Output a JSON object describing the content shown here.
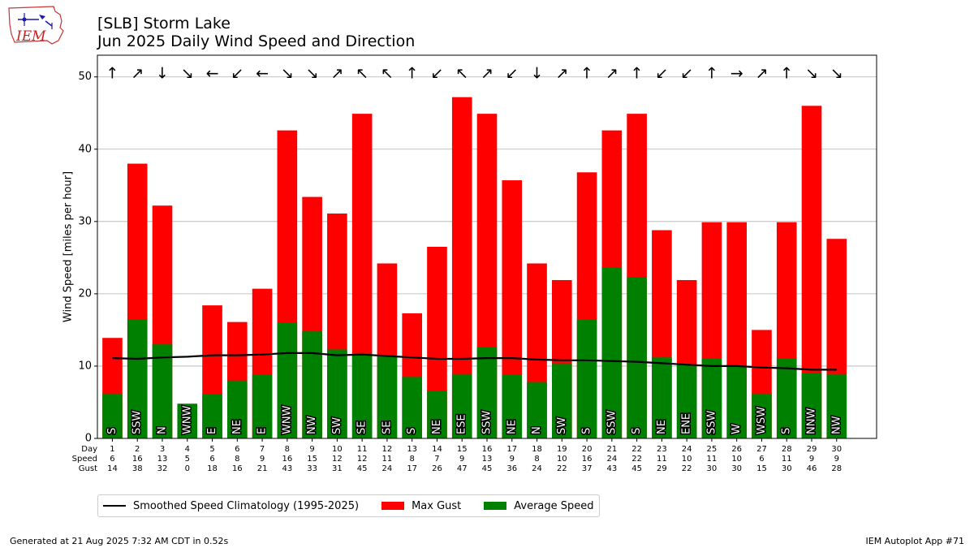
{
  "header": {
    "title_line1": "[SLB] Storm Lake",
    "title_line2": "Jun 2025 Daily Wind Speed and Direction",
    "logo_text": "IEM"
  },
  "footer": {
    "generated": "Generated at 21 Aug 2025 7:32 AM CDT in 0.52s",
    "app": "IEM Autoplot App #71"
  },
  "legend": {
    "clim_label": "Smoothed Speed Climatology (1995-2025)",
    "gust_label": "Max Gust",
    "avg_label": "Average Speed"
  },
  "colors": {
    "gust": "#ff0000",
    "avg": "#008000",
    "clim": "#000000"
  },
  "chart_data": {
    "type": "bar",
    "ylabel": "Wind Speed [miles per hour]",
    "ylim": [
      0,
      53
    ],
    "yticks": [
      0,
      10,
      20,
      30,
      40,
      50
    ],
    "grid": true,
    "legend_position": "bottom",
    "row_labels": [
      "Day",
      "Speed",
      "Gust"
    ],
    "days": [
      1,
      2,
      3,
      4,
      5,
      6,
      7,
      8,
      9,
      10,
      11,
      12,
      13,
      14,
      15,
      16,
      17,
      18,
      19,
      20,
      21,
      22,
      23,
      24,
      25,
      26,
      27,
      28,
      29,
      30
    ],
    "speed_rounded": [
      6,
      16,
      13,
      5,
      6,
      8,
      9,
      16,
      15,
      12,
      12,
      11,
      8,
      7,
      9,
      13,
      9,
      8,
      10,
      16,
      24,
      22,
      11,
      10,
      11,
      10,
      6,
      11,
      9,
      9
    ],
    "gust_rounded": [
      14,
      38,
      32,
      0,
      18,
      16,
      21,
      43,
      33,
      31,
      45,
      24,
      17,
      26,
      47,
      45,
      36,
      24,
      22,
      37,
      43,
      45,
      29,
      22,
      30,
      30,
      15,
      30,
      46,
      28
    ],
    "series": [
      {
        "name": "Max Gust",
        "values": [
          13.9,
          38.0,
          32.2,
          0,
          18.4,
          16.1,
          20.7,
          42.6,
          33.4,
          31.1,
          44.9,
          24.2,
          17.3,
          26.5,
          47.2,
          44.9,
          35.7,
          24.2,
          21.9,
          36.8,
          42.6,
          44.9,
          28.8,
          21.9,
          29.9,
          29.9,
          15.0,
          29.9,
          46.0,
          27.6
        ]
      },
      {
        "name": "Average Speed",
        "values": [
          6.2,
          16.5,
          13.0,
          4.8,
          6.1,
          8.0,
          8.8,
          16.0,
          14.8,
          12.3,
          11.8,
          11.3,
          8.5,
          6.6,
          8.9,
          12.6,
          8.8,
          7.8,
          10.3,
          16.4,
          23.7,
          22.3,
          11.2,
          10.2,
          11.0,
          10.0,
          6.2,
          11.0,
          9.0,
          8.9
        ]
      },
      {
        "name": "Smoothed Speed Climatology (1995-2025)",
        "values": [
          11.1,
          11.0,
          11.2,
          11.3,
          11.5,
          11.5,
          11.6,
          11.8,
          11.8,
          11.5,
          11.6,
          11.4,
          11.2,
          11.0,
          11.0,
          11.1,
          11.1,
          10.9,
          10.8,
          10.8,
          10.7,
          10.6,
          10.4,
          10.2,
          10.0,
          10.0,
          9.8,
          9.7,
          9.5,
          9.5
        ]
      }
    ],
    "directions": [
      "S",
      "SSW",
      "N",
      "WNW",
      "E",
      "NE",
      "E",
      "WNW",
      "NW",
      "SW",
      "SE",
      "SE",
      "S",
      "NE",
      "ESE",
      "SSW",
      "NE",
      "N",
      "SW",
      "S",
      "SSW",
      "S",
      "NE",
      "ENE",
      "SSW",
      "W",
      "WSW",
      "S",
      "NNW",
      "NW"
    ],
    "arrow_glyphs": [
      "↑",
      "↗",
      "↓",
      "↘",
      "←",
      "↙",
      "←",
      "↘",
      "↘",
      "↗",
      "↖",
      "↖",
      "↑",
      "↙",
      "↖",
      "↗",
      "↙",
      "↓",
      "↗",
      "↑",
      "↗",
      "↑",
      "↙",
      "↙",
      "↑",
      "→",
      "↗",
      "↑",
      "↘",
      "↘"
    ]
  }
}
